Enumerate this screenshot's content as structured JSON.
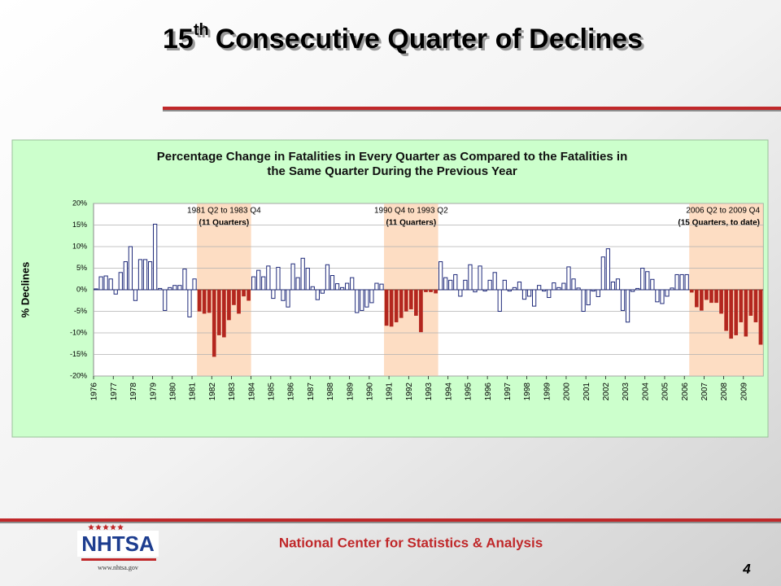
{
  "title": {
    "number": "15",
    "sup": "th",
    "rest": "Consecutive Quarter of Declines"
  },
  "footer": {
    "center": "National Center for Statistics & Analysis",
    "page": "4",
    "logo": "NHTSA",
    "url": "www.nhtsa.gov"
  },
  "chart_data": {
    "type": "bar",
    "title": [
      "Percentage Change in Fatalities in Every Quarter as Compared to the Fatalities in",
      "the Same Quarter During the Previous Year"
    ],
    "ylabel": "% Declines",
    "ylim": [
      -20,
      20
    ],
    "yticks": [
      {
        "value": -20,
        "label": "-20%"
      },
      {
        "value": -15,
        "label": "-15%"
      },
      {
        "value": -10,
        "label": "-10%"
      },
      {
        "value": -5,
        "label": "-5%"
      },
      {
        "value": 0,
        "label": "0%"
      },
      {
        "value": 5,
        "label": "5%"
      },
      {
        "value": 10,
        "label": "10%"
      },
      {
        "value": 15,
        "label": "15%"
      },
      {
        "value": 20,
        "label": "20%"
      }
    ],
    "grid": true,
    "categories": [
      "1976",
      null,
      null,
      null,
      "1977",
      null,
      null,
      null,
      "1978",
      null,
      null,
      null,
      "1979",
      null,
      null,
      null,
      "1980",
      null,
      null,
      null,
      "1981",
      null,
      null,
      null,
      "1982",
      null,
      null,
      null,
      "1983",
      null,
      null,
      null,
      "1984",
      null,
      null,
      null,
      "1985",
      null,
      null,
      null,
      "1986",
      null,
      null,
      null,
      "1987",
      null,
      null,
      null,
      "1988",
      null,
      null,
      null,
      "1989",
      null,
      null,
      null,
      "1990",
      null,
      null,
      null,
      "1991",
      null,
      null,
      null,
      "1992",
      null,
      null,
      null,
      "1993",
      null,
      null,
      null,
      "1994",
      null,
      null,
      null,
      "1995",
      null,
      null,
      null,
      "1996",
      null,
      null,
      null,
      "1997",
      null,
      null,
      null,
      "1998",
      null,
      null,
      null,
      "1999",
      null,
      null,
      null,
      "2000",
      null,
      null,
      null,
      "2001",
      null,
      null,
      null,
      "2002",
      null,
      null,
      null,
      "2003",
      null,
      null,
      null,
      "2004",
      null,
      null,
      null,
      "2005",
      null,
      null,
      null,
      "2006",
      null,
      null,
      null,
      "2007",
      null,
      null,
      null,
      "2008",
      null,
      null,
      null,
      "2009",
      null,
      null,
      null
    ],
    "values": [
      0.2,
      3,
      3.2,
      2.5,
      -1,
      4,
      6.5,
      10,
      -2.5,
      7,
      7,
      6.5,
      15.2,
      0.3,
      -4.8,
      0.5,
      1,
      1,
      4.8,
      -6.3,
      2.5,
      -5,
      -5.5,
      -5.3,
      -15.5,
      -10.5,
      -11,
      -7,
      -3.5,
      -5.5,
      -1.5,
      -2.5,
      3,
      4.5,
      3,
      5.5,
      -2,
      5.2,
      -2.5,
      -4,
      6,
      2.8,
      7.3,
      5,
      0.7,
      -2.3,
      -0.8,
      5.8,
      3.3,
      1.4,
      0.5,
      1.5,
      2.8,
      -5.3,
      -4.8,
      -4,
      -3,
      1.5,
      1.3,
      -8.3,
      -8.5,
      -7.5,
      -6.5,
      -5,
      -4.5,
      -6,
      -9.8,
      -0.5,
      -0.5,
      -0.8,
      6.5,
      2.8,
      2.2,
      3.5,
      -1.5,
      2.2,
      5.8,
      -0.5,
      5.5,
      -0.3,
      2.2,
      4,
      -5,
      2.2,
      -0.3,
      0.5,
      1.8,
      -2.2,
      -1.5,
      -3.8,
      1,
      -0.3,
      -1.8,
      1.6,
      0.5,
      1.5,
      5.3,
      2.5,
      0.4,
      -5,
      -3.5,
      -0.3,
      -1.6,
      7.6,
      9.5,
      1.8,
      2.5,
      -4.8,
      -7.5,
      -0.4,
      0.3,
      5,
      4.2,
      2.4,
      -2.8,
      -3.2,
      -1.5,
      0.4,
      3.5,
      3.5,
      3.5,
      -0.6,
      -4,
      -4.8,
      -2.3,
      -3,
      -3,
      -5.5,
      -9.5,
      -11.3,
      -10.5,
      -7.5,
      -10.8,
      -6,
      -7.5,
      -12.7
    ],
    "colors": [
      "#1f2a7a",
      "#1f2a7a",
      "#1f2a7a",
      "#1f2a7a",
      "#1f2a7a",
      "#1f2a7a",
      "#1f2a7a",
      "#1f2a7a",
      "#1f2a7a",
      "#1f2a7a",
      "#1f2a7a",
      "#1f2a7a",
      "#1f2a7a",
      "#1f2a7a",
      "#1f2a7a",
      "#1f2a7a",
      "#1f2a7a",
      "#1f2a7a",
      "#1f2a7a",
      "#1f2a7a",
      "#1f2a7a",
      "#b3261e",
      "#b3261e",
      "#b3261e",
      "#b3261e",
      "#b3261e",
      "#b3261e",
      "#b3261e",
      "#b3261e",
      "#b3261e",
      "#b3261e",
      "#b3261e",
      "#1f2a7a",
      "#1f2a7a",
      "#1f2a7a",
      "#1f2a7a",
      "#1f2a7a",
      "#1f2a7a",
      "#1f2a7a",
      "#1f2a7a",
      "#1f2a7a",
      "#1f2a7a",
      "#1f2a7a",
      "#1f2a7a",
      "#1f2a7a",
      "#1f2a7a",
      "#1f2a7a",
      "#1f2a7a",
      "#1f2a7a",
      "#1f2a7a",
      "#1f2a7a",
      "#1f2a7a",
      "#1f2a7a",
      "#1f2a7a",
      "#1f2a7a",
      "#1f2a7a",
      "#1f2a7a",
      "#1f2a7a",
      "#1f2a7a",
      "#b3261e",
      "#b3261e",
      "#b3261e",
      "#b3261e",
      "#b3261e",
      "#b3261e",
      "#b3261e",
      "#b3261e",
      "#b3261e",
      "#b3261e",
      "#b3261e",
      "#1f2a7a",
      "#1f2a7a",
      "#1f2a7a",
      "#1f2a7a",
      "#1f2a7a",
      "#1f2a7a",
      "#1f2a7a",
      "#1f2a7a",
      "#1f2a7a",
      "#1f2a7a",
      "#1f2a7a",
      "#1f2a7a",
      "#1f2a7a",
      "#1f2a7a",
      "#1f2a7a",
      "#1f2a7a",
      "#1f2a7a",
      "#1f2a7a",
      "#1f2a7a",
      "#1f2a7a",
      "#1f2a7a",
      "#1f2a7a",
      "#1f2a7a",
      "#1f2a7a",
      "#1f2a7a",
      "#1f2a7a",
      "#1f2a7a",
      "#1f2a7a",
      "#1f2a7a",
      "#1f2a7a",
      "#1f2a7a",
      "#1f2a7a",
      "#1f2a7a",
      "#1f2a7a",
      "#1f2a7a",
      "#1f2a7a",
      "#1f2a7a",
      "#1f2a7a",
      "#1f2a7a",
      "#1f2a7a",
      "#1f2a7a",
      "#1f2a7a",
      "#1f2a7a",
      "#1f2a7a",
      "#1f2a7a",
      "#1f2a7a",
      "#1f2a7a",
      "#1f2a7a",
      "#1f2a7a",
      "#1f2a7a",
      "#1f2a7a",
      "#b3261e",
      "#b3261e",
      "#b3261e",
      "#b3261e",
      "#b3261e",
      "#b3261e",
      "#b3261e",
      "#b3261e",
      "#b3261e",
      "#b3261e",
      "#b3261e",
      "#b3261e",
      "#b3261e",
      "#b3261e",
      "#b3261e"
    ],
    "annotations": [
      {
        "text": "1981 Q2 to 1983 Q4",
        "note": "(11 Quarters)"
      },
      {
        "text": "1990 Q4 to 1993 Q2",
        "note": "(11 Quarters)"
      },
      {
        "text": "2006 Q2 to 2009 Q4",
        "note": "(15 Quarters, to date)"
      }
    ]
  }
}
